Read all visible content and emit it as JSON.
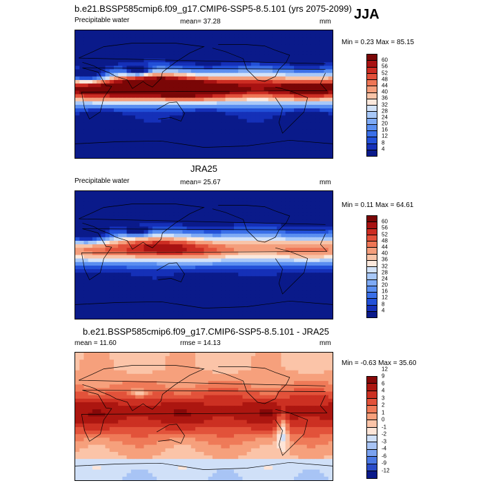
{
  "header": {
    "title": "b.e21.BSSP585cmip6.f09_g17.CMIP6-SSP5-8.5.101 (yrs 2075-2099)",
    "season": "JJA"
  },
  "colors": {
    "abs_scale": [
      "#0a1a8a",
      "#1530b8",
      "#2250d8",
      "#3a6fe8",
      "#5a8ef0",
      "#7eaaf5",
      "#a8c8f8",
      "#d2e2f8",
      "#fbe8dc",
      "#f8c4a8",
      "#f49e7c",
      "#ee7656",
      "#e2503a",
      "#cc2c22",
      "#a81212",
      "#7a0606"
    ],
    "diff_scale": [
      "#0a1a8a",
      "#2a4cc8",
      "#4a78e4",
      "#7aa2f0",
      "#a8c4f5",
      "#d0e0f8",
      "#fde5d8",
      "#fbc4a8",
      "#f6a07c",
      "#ef7a58",
      "#e2523a",
      "#cc3022",
      "#ac1610",
      "#870808"
    ],
    "land_outline": "#000000"
  },
  "panels": [
    {
      "name": "model",
      "title": "",
      "left_label": "Precipitable water",
      "center_label": "mean=  37.28",
      "units": "mm",
      "minmax": "Min =   0.23 Max =  85.15"
    },
    {
      "name": "obs",
      "title": "JRA25",
      "left_label": "Precipitable water",
      "center_label": "mean=  25.67",
      "units": "mm",
      "minmax": "Min =   0.11 Max =  64.61"
    },
    {
      "name": "diff",
      "title": "b.e21.BSSP585cmip6.f09_g17.CMIP6-SSP5-8.5.101 - JRA25",
      "left_label": "mean =   11.60",
      "center_label": "rmse =   14.13",
      "units": "mm",
      "minmax": "Min =  -0.63 Max =  35.60"
    }
  ],
  "chart_data": [
    {
      "type": "heatmap",
      "title": "b.e21.BSSP585cmip6.f09_g17.CMIP6-SSP5-8.5.101 (yrs 2075-2099)",
      "variable": "Precipitable water",
      "units": "mm",
      "mean": 37.28,
      "min": 0.23,
      "max": 85.15,
      "colorbar_levels": [
        4,
        8,
        12,
        16,
        20,
        24,
        28,
        32,
        36,
        40,
        44,
        48,
        52,
        56,
        60
      ]
    },
    {
      "type": "heatmap",
      "title": "JRA25",
      "variable": "Precipitable water",
      "units": "mm",
      "mean": 25.67,
      "min": 0.11,
      "max": 64.61,
      "colorbar_levels": [
        4,
        8,
        12,
        16,
        20,
        24,
        28,
        32,
        36,
        40,
        44,
        48,
        52,
        56,
        60
      ]
    },
    {
      "type": "heatmap",
      "title": "b.e21.BSSP585cmip6.f09_g17.CMIP6-SSP5-8.5.101 - JRA25",
      "units": "mm",
      "mean": 11.6,
      "rmse": 14.13,
      "min": -0.63,
      "max": 35.6,
      "colorbar_levels": [
        -12,
        -9,
        -6,
        -4,
        -3,
        -2,
        -1,
        0,
        1,
        2,
        3,
        4,
        6,
        9,
        12
      ]
    }
  ]
}
